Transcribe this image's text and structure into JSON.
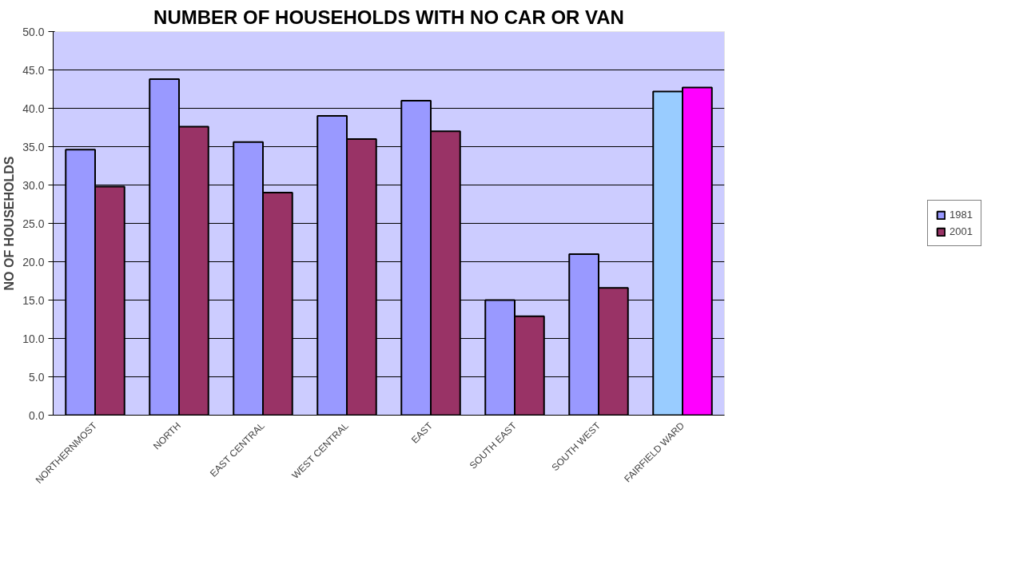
{
  "chart_data": {
    "type": "bar",
    "title": "NUMBER OF HOUSEHOLDS WITH NO CAR OR VAN",
    "ylabel": "NO OF HOUSEHOLDS",
    "categories": [
      "NORTHERNMOST",
      "NORTH",
      "EAST CENTRAL",
      "WEST CENTRAL",
      "EAST",
      "SOUTH EAST",
      "SOUTH WEST",
      "FAIRFIELD WARD"
    ],
    "series": [
      {
        "name": "1981",
        "color": "#9999ff",
        "colors": [
          null,
          null,
          null,
          null,
          null,
          null,
          null,
          "#99ccff"
        ],
        "values": [
          34.6,
          43.8,
          35.6,
          39.0,
          41.0,
          15.0,
          21.0,
          42.2
        ]
      },
      {
        "name": "2001",
        "color": "#993366",
        "colors": [
          null,
          null,
          null,
          null,
          null,
          null,
          null,
          "#ff00ff"
        ],
        "values": [
          29.8,
          37.6,
          29.0,
          36.0,
          37.0,
          12.9,
          16.6,
          42.7
        ]
      }
    ],
    "ylim": [
      0,
      50
    ],
    "yticks": [
      {
        "value": 0,
        "label": "0.0"
      },
      {
        "value": 5,
        "label": "5.0"
      },
      {
        "value": 10,
        "label": "10.0"
      },
      {
        "value": 15,
        "label": "15.0"
      },
      {
        "value": 20,
        "label": "20.0"
      },
      {
        "value": 25,
        "label": "25.0"
      },
      {
        "value": 30,
        "label": "30.0"
      },
      {
        "value": 35,
        "label": "35.0"
      },
      {
        "value": 40,
        "label": "40.0"
      },
      {
        "value": 45,
        "label": "45.0"
      },
      {
        "value": 50,
        "label": "50.0"
      }
    ],
    "grid": "y",
    "legend": "right"
  }
}
